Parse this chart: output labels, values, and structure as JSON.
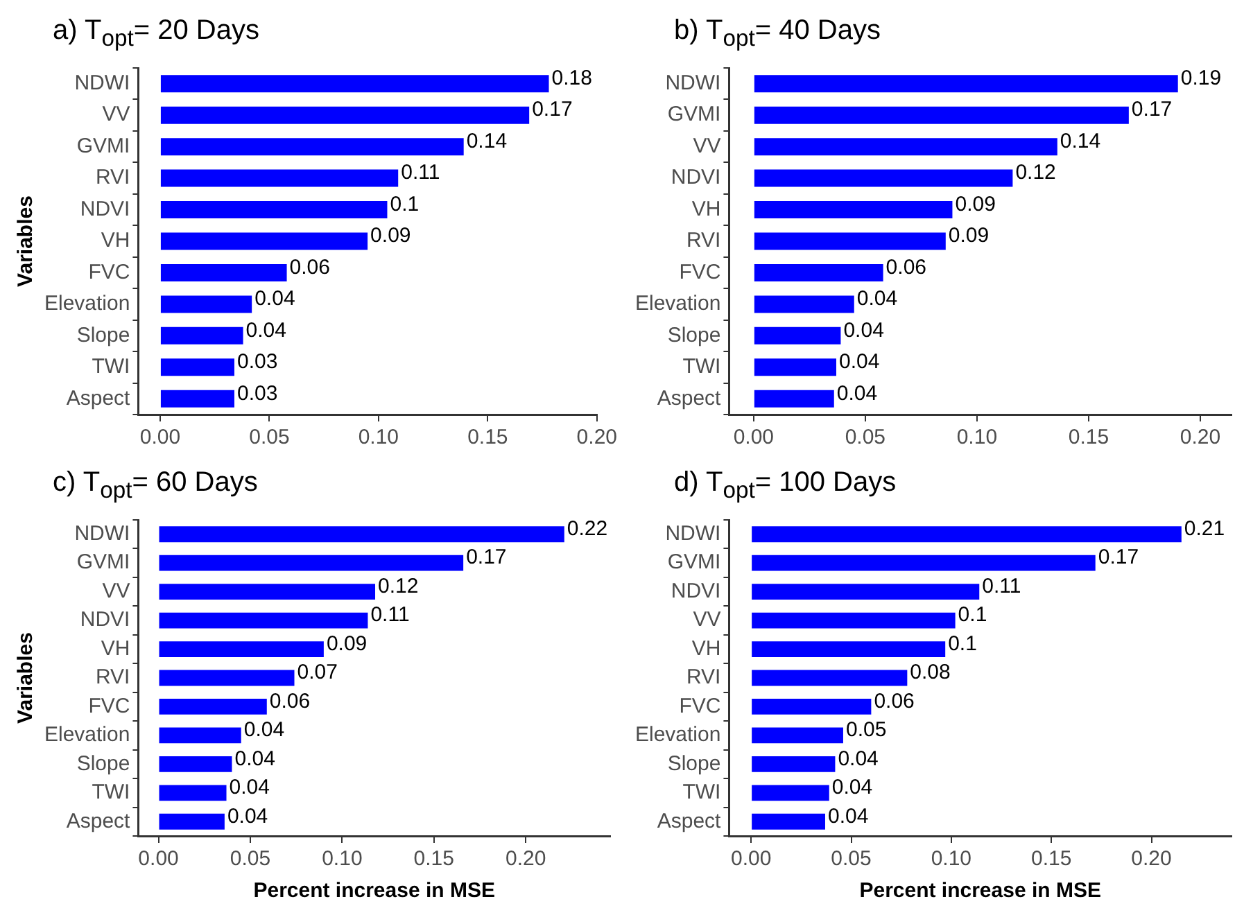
{
  "chart_data": [
    {
      "type": "bar",
      "orientation": "horizontal",
      "title": "a) T$_{opt}$= 20 Days",
      "ylabel": "Variables",
      "categories": [
        "NDWI",
        "VV",
        "GVMI",
        "RVI",
        "NDVI",
        "VH",
        "FVC",
        "Elevation",
        "Slope",
        "TWI",
        "Aspect"
      ],
      "values": [
        0.178,
        0.169,
        0.139,
        0.109,
        0.104,
        0.095,
        0.058,
        0.042,
        0.038,
        0.034,
        0.034
      ],
      "value_labels": [
        "0.18",
        "0.17",
        "0.14",
        "0.11",
        "0.1",
        "0.09",
        "0.06",
        "0.04",
        "0.04",
        "0.03",
        "0.03"
      ],
      "color": "#0000ff",
      "xlim": [
        -0.01,
        0.2
      ],
      "xticks": [
        {
          "value": 0,
          "label": "0.00"
        },
        {
          "value": 0.05,
          "label": "0.05"
        },
        {
          "value": 0.1,
          "label": "0.10"
        },
        {
          "value": 0.15,
          "label": "0.15"
        },
        {
          "value": 0.2,
          "label": "0.20"
        }
      ]
    },
    {
      "type": "bar",
      "orientation": "horizontal",
      "title": "b) T$_{opt}$= 40 Days",
      "categories": [
        "NDWI",
        "GVMI",
        "VV",
        "NDVI",
        "VH",
        "RVI",
        "FVC",
        "Elevation",
        "Slope",
        "TWI",
        "Aspect"
      ],
      "values": [
        0.19,
        0.168,
        0.136,
        0.116,
        0.089,
        0.086,
        0.058,
        0.045,
        0.039,
        0.037,
        0.036
      ],
      "value_labels": [
        "0.19",
        "0.17",
        "0.14",
        "0.12",
        "0.09",
        "0.09",
        "0.06",
        "0.04",
        "0.04",
        "0.04",
        "0.04"
      ],
      "color": "#0000ff",
      "xlim": [
        -0.011,
        0.214
      ],
      "xticks": [
        {
          "value": 0,
          "label": "0.00"
        },
        {
          "value": 0.05,
          "label": "0.05"
        },
        {
          "value": 0.1,
          "label": "0.10"
        },
        {
          "value": 0.15,
          "label": "0.15"
        },
        {
          "value": 0.2,
          "label": "0.20"
        }
      ]
    },
    {
      "type": "bar",
      "orientation": "horizontal",
      "title": "c) T$_{opt}$= 60 Days",
      "xlabel": "Percent increase in MSE",
      "ylabel": "Variables",
      "categories": [
        "NDWI",
        "GVMI",
        "VV",
        "NDVI",
        "VH",
        "RVI",
        "FVC",
        "Elevation",
        "Slope",
        "TWI",
        "Aspect"
      ],
      "values": [
        0.221,
        0.166,
        0.118,
        0.114,
        0.09,
        0.074,
        0.059,
        0.045,
        0.04,
        0.037,
        0.036
      ],
      "value_labels": [
        "0.22",
        "0.17",
        "0.12",
        "0.11",
        "0.09",
        "0.07",
        "0.06",
        "0.04",
        "0.04",
        "0.04",
        "0.04"
      ],
      "color": "#0000ff",
      "xlim": [
        -0.011,
        0.246
      ],
      "xticks": [
        {
          "value": 0,
          "label": "0.00"
        },
        {
          "value": 0.05,
          "label": "0.05"
        },
        {
          "value": 0.1,
          "label": "0.10"
        },
        {
          "value": 0.15,
          "label": "0.15"
        },
        {
          "value": 0.2,
          "label": "0.20"
        }
      ]
    },
    {
      "type": "bar",
      "orientation": "horizontal",
      "title": "d) T$_{opt}$= 100 Days",
      "xlabel": "Percent increase in MSE",
      "categories": [
        "NDWI",
        "GVMI",
        "NDVI",
        "VV",
        "VH",
        "RVI",
        "FVC",
        "Elevation",
        "Slope",
        "TWI",
        "Aspect"
      ],
      "values": [
        0.215,
        0.172,
        0.114,
        0.102,
        0.097,
        0.078,
        0.06,
        0.046,
        0.042,
        0.039,
        0.037
      ],
      "value_labels": [
        "0.21",
        "0.17",
        "0.11",
        "0.1",
        "0.1",
        "0.08",
        "0.06",
        "0.05",
        "0.04",
        "0.04",
        "0.04"
      ],
      "color": "#0000ff",
      "xlim": [
        -0.011,
        0.24
      ],
      "xticks": [
        {
          "value": 0,
          "label": "0.00"
        },
        {
          "value": 0.05,
          "label": "0.05"
        },
        {
          "value": 0.1,
          "label": "0.10"
        },
        {
          "value": 0.15,
          "label": "0.15"
        },
        {
          "value": 0.2,
          "label": "0.20"
        }
      ]
    }
  ]
}
